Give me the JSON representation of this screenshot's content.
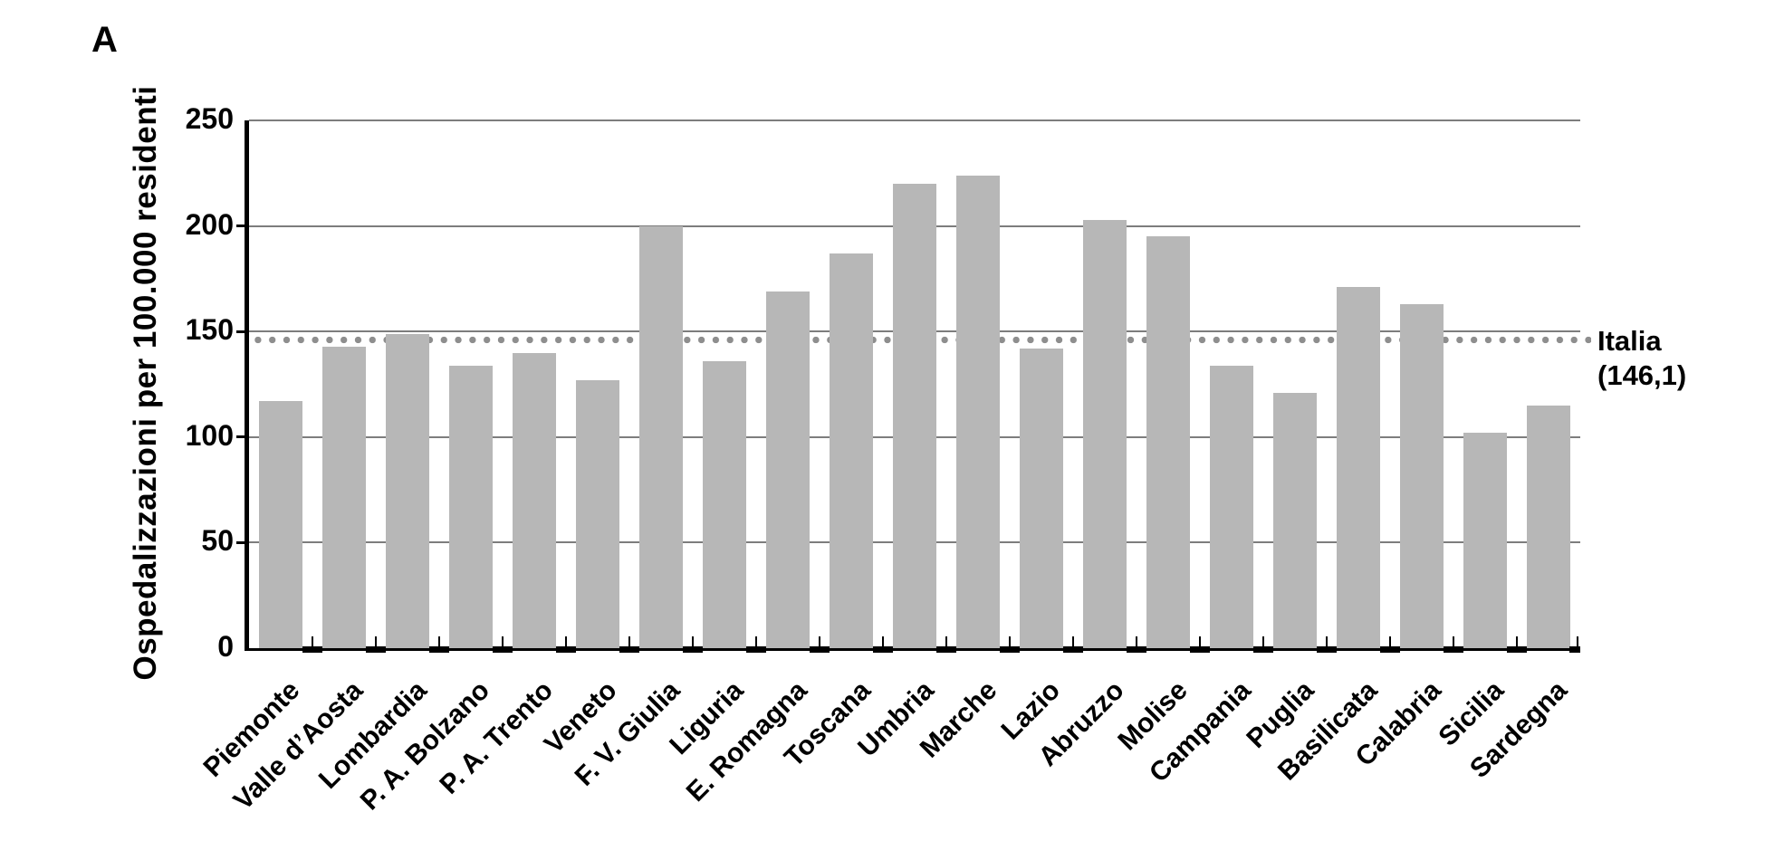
{
  "panel_label": "A",
  "reference_line": {
    "value": 146.1,
    "label_line1": "Italia",
    "label_line2": "(146,1)"
  },
  "colors": {
    "bar_fill": "#b7b7b7",
    "gridline": "#7d7d7d",
    "dotted_line": "#8e8e8e",
    "axis": "#000000",
    "background": "#ffffff"
  },
  "chart_data": {
    "type": "bar",
    "title": "",
    "xlabel": "",
    "ylabel": "Ospedalizzazioni per 100.000 residenti",
    "ylim": [
      0,
      250
    ],
    "yticks": [
      0,
      50,
      100,
      150,
      200,
      250
    ],
    "grid": true,
    "legend": "none",
    "categories": [
      "Piemonte",
      "Valle d’Aosta",
      "Lombardia",
      "P. A. Bolzano",
      "P. A. Trento",
      "Veneto",
      "F. V. Giulia",
      "Liguria",
      "E. Romagna",
      "Toscana",
      "Umbria",
      "Marche",
      "Lazio",
      "Abruzzo",
      "Molise",
      "Campania",
      "Puglia",
      "Basilicata",
      "Calabria",
      "Sicilia",
      "Sardegna"
    ],
    "values": [
      117,
      143,
      149,
      134,
      140,
      127,
      200,
      136,
      169,
      187,
      220,
      224,
      142,
      203,
      195,
      134,
      121,
      171,
      163,
      102,
      115
    ],
    "reference_line": {
      "label": "Italia (146,1)",
      "value": 146.1
    }
  }
}
